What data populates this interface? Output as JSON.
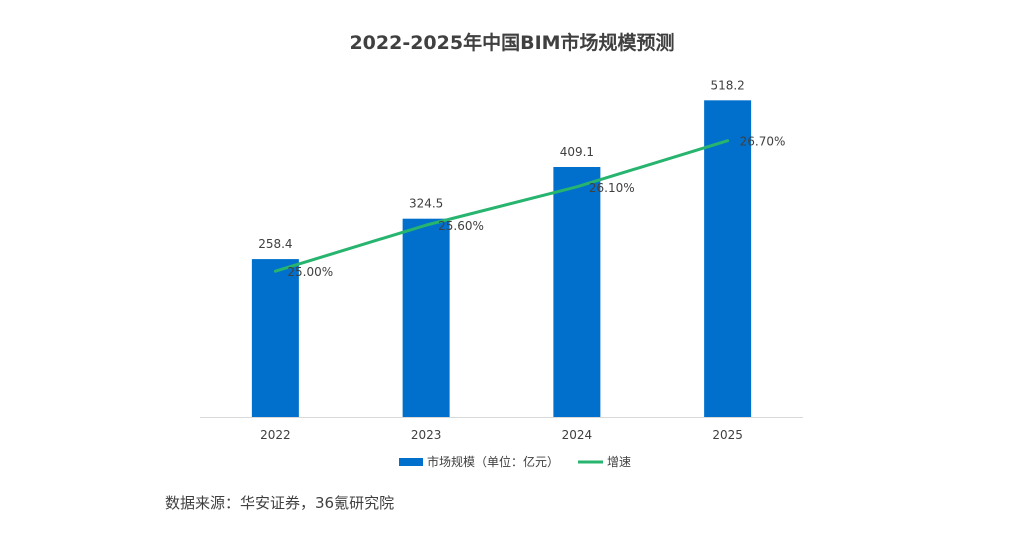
{
  "chart_data": {
    "type": "bar",
    "title": "2022-2025年中国BIM市场规模预测",
    "categories": [
      "2022",
      "2023",
      "2024",
      "2025"
    ],
    "series": [
      {
        "name": "市场规模（单位：亿元）",
        "type": "bar",
        "values": [
          258.4,
          324.5,
          409.1,
          518.2
        ],
        "labels": [
          "258.4",
          "324.5",
          "409.1",
          "518.2"
        ],
        "color": "#0070cc"
      },
      {
        "name": "增速",
        "type": "line",
        "values": [
          25.0,
          25.6,
          26.1,
          26.7
        ],
        "labels": [
          "25.00%",
          "25.60%",
          "26.10%",
          "26.70%"
        ],
        "unit": "%",
        "color": "#27b46e"
      }
    ],
    "bar_axis_range": [
      0,
      540
    ],
    "line_axis_range": [
      23.1,
      27.4
    ],
    "legend_position": "bottom",
    "grid": false
  },
  "source": "数据来源：华安证券，36氪研究院"
}
